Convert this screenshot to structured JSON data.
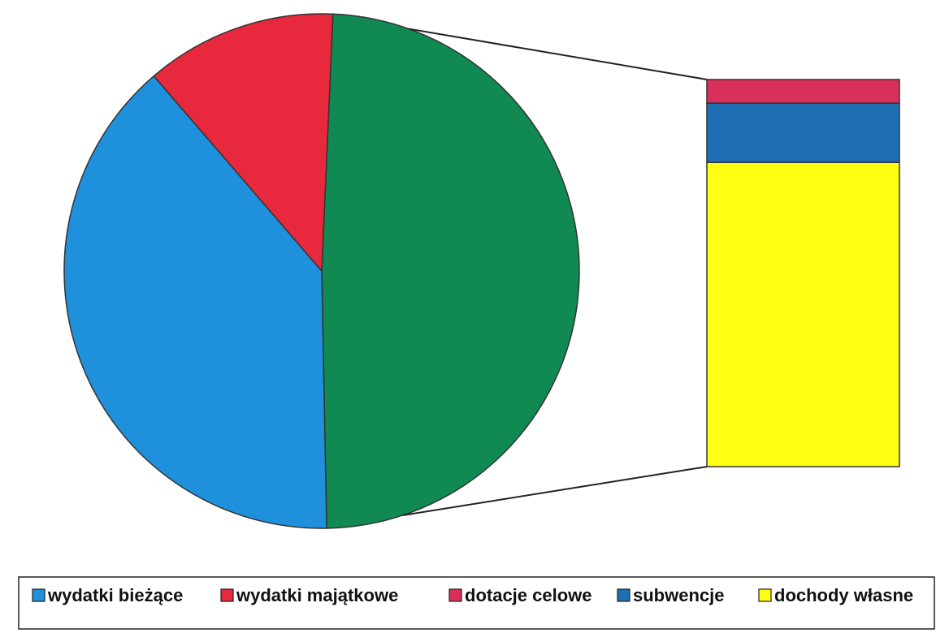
{
  "chart_data": {
    "type": "pie-of-bar",
    "pie": {
      "labels": [
        "wydatki bieżące",
        "wydatki majątkowe"
      ],
      "values": [
        39,
        12
      ],
      "colors": [
        "#1e90dc",
        "#e8283c"
      ]
    },
    "other_color": "#108a52",
    "bar": {
      "labels": [
        "dotacje celowe",
        "subwencje",
        "dochody własne"
      ],
      "values": [
        3,
        7.5,
        38.5
      ],
      "colors": [
        "#d8305a",
        "#1f6db2",
        "#ffff14"
      ]
    }
  }
}
